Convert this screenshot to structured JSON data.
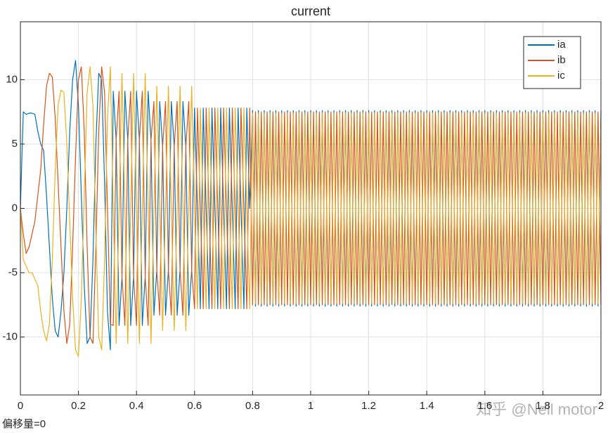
{
  "chart_data": {
    "type": "line",
    "title": "current",
    "x": [
      0,
      0.01,
      0.02,
      0.03,
      0.04,
      0.05,
      0.06,
      0.07,
      0.08,
      0.09,
      0.1,
      0.11,
      0.12,
      0.13,
      0.14,
      0.15,
      0.16,
      0.17,
      0.18,
      0.19,
      0.2,
      0.21,
      0.22,
      0.23,
      0.24,
      0.25,
      0.26,
      0.27,
      0.28,
      0.29,
      0.3,
      0.31,
      0.32,
      0.33,
      0.34,
      0.35,
      0.36,
      0.37,
      0.38,
      0.39,
      0.4,
      0.41,
      0.42,
      0.43,
      0.44,
      0.45,
      0.46,
      0.47,
      0.48,
      0.49,
      0.5,
      0.51,
      0.52,
      0.53,
      0.54,
      0.55,
      0.56,
      0.57,
      0.58,
      0.59,
      0.6,
      0.61,
      0.62,
      0.63,
      0.64,
      0.65,
      0.66,
      0.67,
      0.68,
      0.69,
      0.7,
      0.71,
      0.72,
      0.73,
      0.74,
      0.75,
      0.76,
      0.77,
      0.78,
      0.79,
      0.8,
      0.81,
      0.82,
      0.83,
      0.84,
      0.85,
      0.86,
      0.87,
      0.88,
      0.89,
      0.9,
      0.91,
      0.92,
      0.93,
      0.94,
      0.95,
      0.96,
      0.97,
      0.98,
      0.99,
      1,
      1.01,
      1.02,
      1.03,
      1.04,
      1.05,
      1.06,
      1.07,
      1.08,
      1.09,
      1.1,
      1.11,
      1.12,
      1.13,
      1.14,
      1.15,
      1.16,
      1.17,
      1.18,
      1.19,
      1.2,
      1.21,
      1.22,
      1.23,
      1.24,
      1.25,
      1.26,
      1.27,
      1.28,
      1.29,
      1.3,
      1.31,
      1.32,
      1.33,
      1.34,
      1.35,
      1.36,
      1.37,
      1.38,
      1.39,
      1.4,
      1.41,
      1.42,
      1.43,
      1.44,
      1.45,
      1.46,
      1.47,
      1.48,
      1.49,
      1.5,
      1.51,
      1.52,
      1.53,
      1.54,
      1.55,
      1.56,
      1.57,
      1.58,
      1.59,
      1.6,
      1.61,
      1.62,
      1.63,
      1.64,
      1.65,
      1.66,
      1.67,
      1.68,
      1.69,
      1.7,
      1.71,
      1.72,
      1.73,
      1.74,
      1.75,
      1.76,
      1.77,
      1.78,
      1.79,
      1.8,
      1.81,
      1.82,
      1.83,
      1.84,
      1.85,
      1.86,
      1.87,
      1.88,
      1.89,
      1.9,
      1.91,
      1.92,
      1.93,
      1.94,
      1.95,
      1.96,
      1.97,
      1.98,
      1.99,
      2
    ],
    "series": [
      {
        "name": "ia",
        "color": "#0072BD",
        "values": [
          0,
          7.5,
          7.3,
          7.4,
          7.4,
          7.3,
          6,
          5,
          4.5,
          1,
          -3,
          -7,
          -9.5,
          -10,
          -8,
          -5,
          0,
          6,
          10,
          11.5,
          8,
          1,
          -6,
          -10.5,
          -10,
          -4,
          5,
          10.5,
          10,
          2,
          -8,
          -11,
          9.1,
          5.3,
          -9.1,
          -5.3,
          9.1,
          5.3,
          -9.1,
          -5.3,
          9.1,
          5.3,
          -9.1,
          -5.3,
          9.1,
          5.3,
          -8.3,
          -4.8,
          8.3,
          4.8,
          -8.3,
          -4.8,
          8.3,
          4.8,
          -8.3,
          -4.8,
          8.3,
          4.8,
          -8.3,
          -4.8,
          7.8,
          0,
          -7.8,
          7.8,
          0,
          -7.8,
          7.8,
          0,
          -7.8,
          7.8,
          0,
          -7.8,
          7.8,
          0,
          -7.8,
          7.8,
          0,
          -7.8,
          7.8,
          0,
          7.6,
          -7.6,
          7.6,
          -7.6,
          7.6,
          -7.6,
          7.6,
          -7.6,
          7.6,
          -7.6,
          7.6,
          -7.6,
          7.6,
          -7.6,
          7.6,
          -7.6,
          7.6,
          -7.6,
          7.6,
          -7.6,
          7.6,
          -7.6,
          7.6,
          -7.6,
          7.6,
          -7.6,
          7.6,
          -7.6,
          7.6,
          -7.6,
          7.6,
          -7.6,
          7.6,
          -7.6,
          7.6,
          -7.6,
          7.6,
          -7.6,
          7.6,
          -7.6,
          7.6,
          -7.6,
          7.6,
          -7.6,
          7.6,
          -7.6,
          7.6,
          -7.6,
          7.6,
          -7.6,
          7.6,
          -7.6,
          7.6,
          -7.6,
          7.6,
          -7.6,
          7.6,
          -7.6,
          7.6,
          -7.6,
          7.6,
          -7.6,
          7.6,
          -7.6,
          7.6,
          -7.6,
          7.6,
          -7.6,
          7.6,
          -7.6,
          7.6,
          -7.6,
          7.6,
          -7.6,
          7.6,
          -7.6,
          7.6,
          -7.6,
          7.6,
          -7.6,
          7.6,
          -7.6,
          7.6,
          -7.6,
          7.6,
          -7.6,
          7.6,
          -7.6,
          7.6,
          -7.6,
          7.6,
          -7.6,
          7.6,
          -7.6,
          7.6,
          -7.6,
          7.6,
          -7.6,
          7.6,
          -7.6,
          7.6,
          -7.6,
          7.6,
          -7.6,
          7.6,
          -7.6,
          7.6,
          -7.6,
          7.6,
          -7.6,
          7.6,
          -7.6,
          7.6,
          -7.6,
          7.6,
          -7.6,
          7.6,
          -7.6,
          7.6,
          -7.6,
          7.6
        ]
      },
      {
        "name": "ib",
        "color": "#D95319",
        "values": [
          0,
          -2,
          -3.5,
          -3,
          -2,
          -1,
          1,
          3,
          6.5,
          9.5,
          10.5,
          10.2,
          7,
          2,
          -3,
          -8,
          -10.5,
          -9,
          -3,
          4,
          10,
          11,
          6,
          -3,
          -10,
          -10.5,
          -3,
          6,
          11,
          9,
          0,
          -9,
          -9.1,
          5.3,
          9.1,
          -5.3,
          -9.1,
          5.3,
          9.1,
          -5.3,
          -9.1,
          5.3,
          9.1,
          -5.3,
          -9.1,
          5.3,
          8.3,
          -4.8,
          -8.3,
          4.8,
          8.3,
          -4.8,
          -8.3,
          4.8,
          8.3,
          -4.8,
          -8.3,
          4.8,
          8.3,
          -4.8,
          -7.8,
          7.8,
          0,
          -7.8,
          7.8,
          0,
          -7.8,
          7.8,
          0,
          -7.8,
          7.8,
          0,
          -7.8,
          7.8,
          0,
          -7.8,
          7.8,
          0,
          -7.8,
          7.8,
          -7.5,
          7.5,
          -7.5,
          7.5,
          -7.5,
          7.5,
          -7.5,
          7.5,
          -7.5,
          7.5,
          -7.5,
          7.5,
          -7.5,
          7.5,
          -7.5,
          7.5,
          -7.5,
          7.5,
          -7.5,
          7.5,
          -7.5,
          7.5,
          -7.5,
          7.5,
          -7.5,
          7.5,
          -7.5,
          7.5,
          -7.5,
          7.5,
          -7.5,
          7.5,
          -7.5,
          7.5,
          -7.5,
          7.5,
          -7.5,
          7.5,
          -7.5,
          7.5,
          -7.5,
          7.5,
          -7.5,
          7.5,
          -7.5,
          7.5,
          -7.5,
          7.5,
          -7.5,
          7.5,
          -7.5,
          7.5,
          -7.5,
          7.5,
          -7.5,
          7.5,
          -7.5,
          7.5,
          -7.5,
          7.5,
          -7.5,
          7.5,
          -7.5,
          7.5,
          -7.5,
          7.5,
          -7.5,
          7.5,
          -7.5,
          7.5,
          -7.5,
          7.5,
          -7.5,
          7.5,
          -7.5,
          7.5,
          -7.5,
          7.5,
          -7.5,
          7.5,
          -7.5,
          7.5,
          -7.5,
          7.5,
          -7.5,
          7.5,
          -7.5,
          7.5,
          -7.5,
          7.5,
          -7.5,
          7.5,
          -7.5,
          7.5,
          -7.5,
          7.5,
          -7.5,
          7.5,
          -7.5,
          7.5,
          -7.5,
          7.5,
          -7.5,
          7.5,
          -7.5,
          7.5,
          -7.5,
          7.5,
          -7.5,
          7.5,
          -7.5,
          7.5,
          -7.5,
          7.5,
          -7.5,
          7.5,
          -7.5,
          7.5,
          -7.5,
          7.5,
          -7.5
        ]
      },
      {
        "name": "ic",
        "color": "#EDB120",
        "values": [
          0,
          -4,
          -4.5,
          -5,
          -5,
          -5.5,
          -6,
          -8,
          -9.5,
          -10.3,
          -9,
          -4,
          3,
          8,
          9.2,
          9,
          5,
          -1,
          -7,
          -11,
          -11.5,
          -7,
          1,
          9,
          11,
          8,
          -2,
          -10,
          -11,
          -4,
          7,
          11,
          0,
          -10.5,
          0,
          10.5,
          0,
          -10.5,
          0,
          10.5,
          0,
          -10.5,
          0,
          10.5,
          0,
          -10.5,
          0,
          9.5,
          0,
          -9.5,
          0,
          9.5,
          0,
          -9.5,
          0,
          9.5,
          0,
          -9.5,
          0,
          9.5,
          0,
          -7.8,
          7.8,
          0,
          -7.8,
          7.8,
          0,
          -7.8,
          7.8,
          0,
          -7.8,
          7.8,
          0,
          -7.8,
          7.8,
          0,
          -7.8,
          7.8,
          0,
          -7.8,
          7.4,
          -7.4,
          7.4,
          -7.4,
          7.4,
          -7.4,
          7.4,
          -7.4,
          7.4,
          -7.4,
          7.4,
          -7.4,
          7.4,
          -7.4,
          7.4,
          -7.4,
          7.4,
          -7.4,
          7.4,
          -7.4,
          7.4,
          -7.4,
          7.4,
          -7.4,
          7.4,
          -7.4,
          7.4,
          -7.4,
          7.4,
          -7.4,
          7.4,
          -7.4,
          7.4,
          -7.4,
          7.4,
          -7.4,
          7.4,
          -7.4,
          7.4,
          -7.4,
          7.4,
          -7.4,
          7.4,
          -7.4,
          7.4,
          -7.4,
          7.4,
          -7.4,
          7.4,
          -7.4,
          7.4,
          -7.4,
          7.4,
          -7.4,
          7.4,
          -7.4,
          7.4,
          -7.4,
          7.4,
          -7.4,
          7.4,
          -7.4,
          7.4,
          -7.4,
          7.4,
          -7.4,
          7.4,
          -7.4,
          7.4,
          -7.4,
          7.4,
          -7.4,
          7.4,
          -7.4,
          7.4,
          -7.4,
          7.4,
          -7.4,
          7.4,
          -7.4,
          7.4,
          -7.4,
          7.4,
          -7.4,
          7.4,
          -7.4,
          7.4,
          -7.4,
          7.4,
          -7.4,
          7.4,
          -7.4,
          7.4,
          -7.4,
          7.4,
          -7.4,
          7.4,
          -7.4,
          7.4,
          -7.4,
          7.4,
          -7.4,
          7.4,
          -7.4,
          7.4,
          -7.4,
          7.4,
          -7.4,
          7.4,
          -7.4,
          7.4,
          -7.4,
          7.4,
          -7.4,
          7.4,
          -7.4,
          7.4,
          -7.4,
          7.4,
          -7.4,
          7.4
        ]
      }
    ],
    "xlim": [
      0,
      2
    ],
    "xticks": [
      0,
      0.2,
      0.4,
      0.6,
      0.8,
      1,
      1.2,
      1.4,
      1.6,
      1.8,
      2
    ],
    "ylim": [
      -14.5,
      14.5
    ],
    "yticks": [
      -10,
      -5,
      0,
      5,
      10
    ],
    "grid": true,
    "legend": "upper right",
    "footer": "偏移量=0",
    "watermark": "知乎 @Neil motor"
  }
}
